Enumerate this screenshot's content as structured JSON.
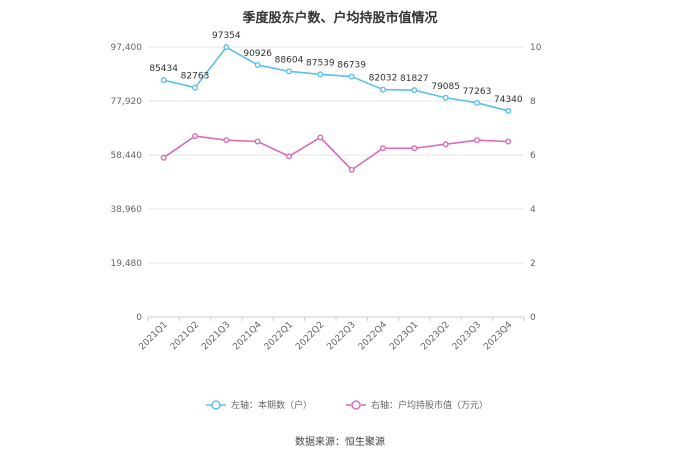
{
  "chart_data": {
    "type": "line",
    "title": "季度股东户数、户均持股市值情况",
    "categories": [
      "2021Q1",
      "2021Q2",
      "2021Q3",
      "2021Q4",
      "2022Q1",
      "2022Q2",
      "2022Q3",
      "2022Q4",
      "2023Q1",
      "2023Q2",
      "2023Q3",
      "2023Q4"
    ],
    "left_axis": {
      "ylim": [
        0,
        97400
      ],
      "ticks": [
        "0",
        "19,480",
        "38,960",
        "58,440",
        "77,920",
        "97,400"
      ]
    },
    "right_axis": {
      "ylim": [
        0,
        10
      ],
      "ticks": [
        "0",
        "2",
        "4",
        "6",
        "8",
        "10"
      ]
    },
    "series": [
      {
        "name": "左轴：本期数（户）",
        "axis": "left",
        "color": "#5bc0eb",
        "values": [
          85434,
          82763,
          97354,
          90926,
          88604,
          87539,
          86739,
          82032,
          81827,
          79085,
          77263,
          74340
        ],
        "labels": [
          "85434",
          "82763",
          "97354",
          "90926",
          "88604",
          "87539",
          "86739",
          "82032",
          "81827",
          "79085",
          "77263",
          "74340"
        ]
      },
      {
        "name": "右轴：户均持股市值（万元）",
        "axis": "right",
        "color": "#d96bb8",
        "values": [
          5.9,
          6.7,
          6.55,
          6.5,
          5.95,
          6.65,
          5.45,
          6.25,
          6.25,
          6.4,
          6.55,
          6.5
        ]
      }
    ],
    "grid": true,
    "legend": "bottom-center"
  },
  "source": "数据来源：恒生聚源"
}
